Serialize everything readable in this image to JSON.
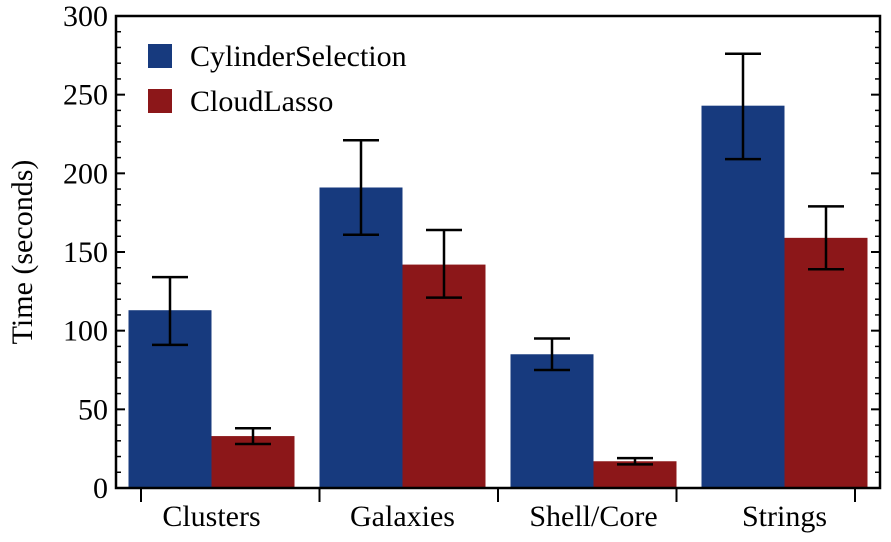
{
  "chart_data": {
    "type": "bar",
    "title": "",
    "xlabel": "",
    "ylabel": "Time (seconds)",
    "ylim": [
      0,
      300
    ],
    "yticks": [
      0,
      50,
      100,
      150,
      200,
      250,
      300
    ],
    "categories": [
      "Clusters",
      "Galaxies",
      "Shell/Core",
      "Strings"
    ],
    "series": [
      {
        "name": "CylinderSelection",
        "color": "#173a7e",
        "values": [
          113,
          191,
          85,
          243
        ],
        "error_low": [
          91,
          161,
          75,
          209
        ],
        "error_high": [
          134,
          221,
          95,
          276
        ]
      },
      {
        "name": "CloudLasso",
        "color": "#8c1719",
        "values": [
          33,
          142,
          17,
          159
        ],
        "error_low": [
          28,
          121,
          15,
          139
        ],
        "error_high": [
          38,
          164,
          19,
          179
        ]
      }
    ],
    "legend": "top-left",
    "grid": false
  }
}
